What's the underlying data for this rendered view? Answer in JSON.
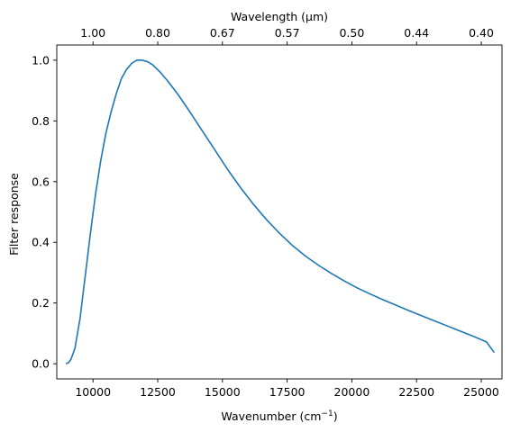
{
  "chart_data": {
    "type": "line",
    "title": "",
    "xlabel": "Wavenumber (cm",
    "xlabel_superscript": "−1",
    "xlabel_suffix": ")",
    "ylabel": "Filter response",
    "x2label": "Wavelength (μm)",
    "xlim": [
      8600,
      25800
    ],
    "ylim": [
      -0.05,
      1.05
    ],
    "grid": false,
    "x_ticks": [
      10000,
      12500,
      15000,
      17500,
      20000,
      22500,
      25000
    ],
    "x_tick_labels": [
      "10000",
      "12500",
      "15000",
      "17500",
      "20000",
      "22500",
      "25000"
    ],
    "y_ticks": [
      0.0,
      0.2,
      0.4,
      0.6,
      0.8,
      1.0
    ],
    "y_tick_labels": [
      "0.0",
      "0.2",
      "0.4",
      "0.6",
      "0.8",
      "1.0"
    ],
    "x2_ticks_wavenumber": [
      10000,
      12500,
      15000,
      17500,
      20000,
      22500,
      25000
    ],
    "x2_tick_labels": [
      "1.00",
      "0.80",
      "0.67",
      "0.57",
      "0.50",
      "0.44",
      "0.40"
    ],
    "series": [
      {
        "color": "#1f77b4",
        "x": [
          8950,
          9050,
          9150,
          9300,
          9500,
          9700,
          9900,
          10100,
          10300,
          10500,
          10700,
          10900,
          11100,
          11300,
          11500,
          11700,
          11900,
          12100,
          12300,
          12600,
          12900,
          13300,
          13700,
          14200,
          14700,
          15200,
          15700,
          16200,
          16700,
          17200,
          17700,
          18200,
          18700,
          19200,
          19700,
          20200,
          20700,
          21200,
          21700,
          22200,
          22700,
          23200,
          23700,
          24200,
          24700,
          25200,
          25500
        ],
        "y": [
          0.0,
          0.003,
          0.015,
          0.05,
          0.15,
          0.29,
          0.43,
          0.56,
          0.67,
          0.76,
          0.83,
          0.89,
          0.94,
          0.97,
          0.99,
          1.0,
          1.0,
          0.995,
          0.985,
          0.96,
          0.93,
          0.885,
          0.835,
          0.77,
          0.705,
          0.64,
          0.58,
          0.525,
          0.475,
          0.43,
          0.39,
          0.355,
          0.325,
          0.298,
          0.273,
          0.25,
          0.23,
          0.211,
          0.193,
          0.175,
          0.158,
          0.141,
          0.124,
          0.107,
          0.09,
          0.072,
          0.037
        ]
      }
    ]
  }
}
